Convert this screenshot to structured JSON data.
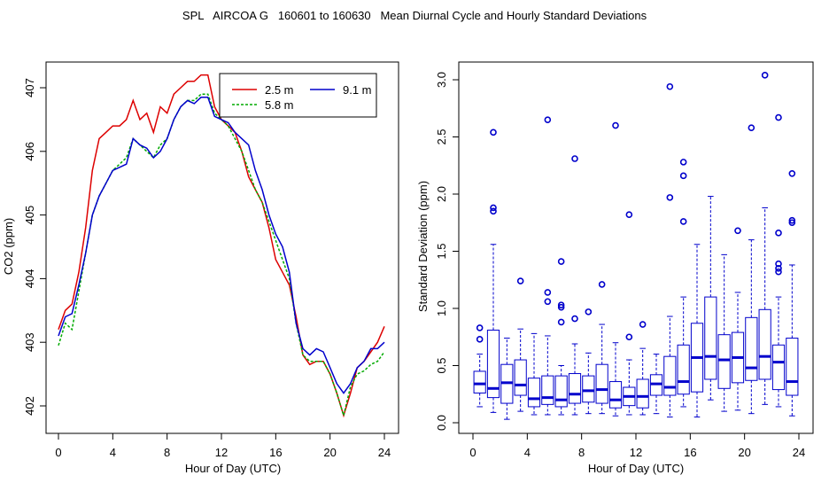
{
  "title": "SPL   AIRCOA G   160601 to 160630   Mean Diurnal Cycle and Hourly Standard Deviations",
  "chart_data": [
    {
      "type": "line",
      "xlabel": "Hour of Day (UTC)",
      "ylabel": "CO2 (ppm)",
      "xlim": [
        0,
        24
      ],
      "ylim": [
        401.6,
        407.3
      ],
      "xticks": [
        "0",
        "4",
        "8",
        "12",
        "16",
        "20",
        "24"
      ],
      "yticks": [
        "402",
        "403",
        "404",
        "405",
        "406",
        "407"
      ],
      "legend_position": "top-right",
      "series": [
        {
          "name": "2.5 m",
          "color": "#dd0000",
          "x": [
            0,
            0.5,
            1,
            1.5,
            2,
            2.5,
            3,
            3.5,
            4,
            4.5,
            5,
            5.5,
            6,
            6.5,
            7,
            7.5,
            8,
            8.5,
            9,
            9.5,
            10,
            10.5,
            11,
            11.5,
            12,
            12.5,
            13,
            13.5,
            14,
            14.5,
            15,
            15.5,
            16,
            16.5,
            17,
            17.5,
            18,
            18.5,
            19,
            19.5,
            20,
            20.5,
            21,
            21.5,
            22,
            22.5,
            23,
            23.5,
            24
          ],
          "y": [
            403.2,
            403.5,
            403.6,
            404.1,
            404.8,
            405.7,
            406.2,
            406.3,
            406.4,
            406.4,
            406.5,
            406.8,
            406.5,
            406.6,
            406.3,
            406.7,
            406.6,
            406.9,
            407.0,
            407.1,
            407.1,
            407.2,
            407.2,
            406.7,
            406.5,
            406.4,
            406.3,
            406.0,
            405.6,
            405.4,
            405.2,
            404.8,
            404.3,
            404.1,
            403.9,
            403.4,
            402.8,
            402.65,
            402.7,
            402.7,
            402.5,
            402.2,
            401.85,
            402.2,
            402.6,
            402.7,
            402.85,
            403.0,
            403.25
          ]
        },
        {
          "name": "5.8 m",
          "color": "#00aa00",
          "x": [
            0,
            0.5,
            1,
            1.5,
            2,
            2.5,
            3,
            3.5,
            4,
            4.5,
            5,
            5.5,
            6,
            6.5,
            7,
            7.5,
            8,
            8.5,
            9,
            9.5,
            10,
            10.5,
            11,
            11.5,
            12,
            12.5,
            13,
            13.5,
            14,
            14.5,
            15,
            15.5,
            16,
            16.5,
            17,
            17.5,
            18,
            18.5,
            19,
            19.5,
            20,
            20.5,
            21,
            21.5,
            22,
            22.5,
            23,
            23.5,
            24
          ],
          "y": [
            402.95,
            403.3,
            403.2,
            403.8,
            404.4,
            405.0,
            405.3,
            405.5,
            405.7,
            405.8,
            405.9,
            406.2,
            406.1,
            406.0,
            405.9,
            406.1,
            406.2,
            406.5,
            406.7,
            406.8,
            406.8,
            406.9,
            406.9,
            406.6,
            406.5,
            406.4,
            406.2,
            406.0,
            405.7,
            405.4,
            405.2,
            404.9,
            404.6,
            404.3,
            404.0,
            403.3,
            402.8,
            402.7,
            402.7,
            402.7,
            402.5,
            402.2,
            401.85,
            402.3,
            402.5,
            402.55,
            402.65,
            402.7,
            402.85
          ]
        },
        {
          "name": "9.1 m",
          "color": "#0000cc",
          "x": [
            0,
            0.5,
            1,
            1.5,
            2,
            2.5,
            3,
            3.5,
            4,
            4.5,
            5,
            5.5,
            6,
            6.5,
            7,
            7.5,
            8,
            8.5,
            9,
            9.5,
            10,
            10.5,
            11,
            11.5,
            12,
            12.5,
            13,
            13.5,
            14,
            14.5,
            15,
            15.5,
            16,
            16.5,
            17,
            17.5,
            18,
            18.5,
            19,
            19.5,
            20,
            20.5,
            21,
            21.5,
            22,
            22.5,
            23,
            23.5,
            24
          ],
          "y": [
            403.1,
            403.4,
            403.45,
            403.9,
            404.4,
            405.0,
            405.3,
            405.5,
            405.7,
            405.75,
            405.8,
            406.2,
            406.1,
            406.05,
            405.9,
            406.0,
            406.2,
            406.5,
            406.7,
            406.8,
            406.75,
            406.85,
            406.85,
            406.55,
            406.5,
            406.45,
            406.3,
            406.2,
            406.1,
            405.7,
            405.4,
            405.0,
            404.7,
            404.5,
            404.1,
            403.3,
            402.9,
            402.8,
            402.9,
            402.85,
            402.6,
            402.35,
            402.2,
            402.35,
            402.6,
            402.7,
            402.9,
            402.9,
            403.0
          ]
        }
      ]
    },
    {
      "type": "box",
      "xlabel": "Hour of Day (UTC)",
      "ylabel": "Standard Deviation (ppm)",
      "xlim": [
        0,
        24
      ],
      "ylim": [
        0,
        3.0
      ],
      "xticks": [
        "0",
        "4",
        "8",
        "12",
        "16",
        "20",
        "24"
      ],
      "yticks": [
        "0.0",
        "0.5",
        "1.0",
        "1.5",
        "2.0",
        "2.5",
        "3.0"
      ],
      "color": "#0000cc",
      "boxes": [
        {
          "hour": 0.5,
          "whisker_low": 0.14,
          "q1": 0.26,
          "median": 0.34,
          "q3": 0.45,
          "whisker_high": 0.6,
          "outliers": [
            0.73,
            0.83
          ]
        },
        {
          "hour": 1.5,
          "whisker_low": 0.09,
          "q1": 0.22,
          "median": 0.3,
          "q3": 0.81,
          "whisker_high": 1.56,
          "outliers": [
            1.85,
            1.88,
            2.54
          ]
        },
        {
          "hour": 2.5,
          "whisker_low": 0.03,
          "q1": 0.17,
          "median": 0.35,
          "q3": 0.51,
          "whisker_high": 0.74,
          "outliers": []
        },
        {
          "hour": 3.5,
          "whisker_low": 0.1,
          "q1": 0.24,
          "median": 0.33,
          "q3": 0.55,
          "whisker_high": 0.82,
          "outliers": [
            1.24
          ]
        },
        {
          "hour": 4.5,
          "whisker_low": 0.07,
          "q1": 0.14,
          "median": 0.21,
          "q3": 0.39,
          "whisker_high": 0.78,
          "outliers": []
        },
        {
          "hour": 5.5,
          "whisker_low": 0.07,
          "q1": 0.16,
          "median": 0.22,
          "q3": 0.41,
          "whisker_high": 0.76,
          "outliers": [
            1.06,
            1.14,
            2.65
          ]
        },
        {
          "hour": 6.5,
          "whisker_low": 0.07,
          "q1": 0.14,
          "median": 0.2,
          "q3": 0.41,
          "whisker_high": 0.5,
          "outliers": [
            0.88,
            1.01,
            1.03,
            1.41
          ]
        },
        {
          "hour": 7.5,
          "whisker_low": 0.07,
          "q1": 0.17,
          "median": 0.25,
          "q3": 0.43,
          "whisker_high": 0.69,
          "outliers": [
            0.91,
            2.31
          ]
        },
        {
          "hour": 8.5,
          "whisker_low": 0.08,
          "q1": 0.18,
          "median": 0.28,
          "q3": 0.41,
          "whisker_high": 0.61,
          "outliers": [
            0.97
          ]
        },
        {
          "hour": 9.5,
          "whisker_low": 0.08,
          "q1": 0.17,
          "median": 0.29,
          "q3": 0.51,
          "whisker_high": 0.86,
          "outliers": [
            1.21
          ]
        },
        {
          "hour": 10.5,
          "whisker_low": 0.06,
          "q1": 0.13,
          "median": 0.2,
          "q3": 0.36,
          "whisker_high": 0.7,
          "outliers": [
            2.6
          ]
        },
        {
          "hour": 11.5,
          "whisker_low": 0.07,
          "q1": 0.15,
          "median": 0.23,
          "q3": 0.31,
          "whisker_high": 0.55,
          "outliers": [
            0.75,
            1.82
          ]
        },
        {
          "hour": 12.5,
          "whisker_low": 0.07,
          "q1": 0.13,
          "median": 0.23,
          "q3": 0.38,
          "whisker_high": 0.65,
          "outliers": [
            0.86
          ]
        },
        {
          "hour": 13.5,
          "whisker_low": 0.08,
          "q1": 0.24,
          "median": 0.34,
          "q3": 0.42,
          "whisker_high": 0.6,
          "outliers": []
        },
        {
          "hour": 14.5,
          "whisker_low": 0.05,
          "q1": 0.24,
          "median": 0.31,
          "q3": 0.58,
          "whisker_high": 0.93,
          "outliers": [
            1.97,
            2.94
          ]
        },
        {
          "hour": 15.5,
          "whisker_low": 0.14,
          "q1": 0.25,
          "median": 0.36,
          "q3": 0.68,
          "whisker_high": 1.1,
          "outliers": [
            1.76,
            2.16,
            2.28
          ]
        },
        {
          "hour": 16.5,
          "whisker_low": 0.05,
          "q1": 0.27,
          "median": 0.57,
          "q3": 0.87,
          "whisker_high": 1.56,
          "outliers": []
        },
        {
          "hour": 17.5,
          "whisker_low": 0.2,
          "q1": 0.38,
          "median": 0.58,
          "q3": 1.1,
          "whisker_high": 1.98,
          "outliers": []
        },
        {
          "hour": 18.5,
          "whisker_low": 0.1,
          "q1": 0.3,
          "median": 0.55,
          "q3": 0.77,
          "whisker_high": 1.47,
          "outliers": []
        },
        {
          "hour": 19.5,
          "whisker_low": 0.11,
          "q1": 0.35,
          "median": 0.57,
          "q3": 0.79,
          "whisker_high": 1.14,
          "outliers": [
            1.68
          ]
        },
        {
          "hour": 20.5,
          "whisker_low": 0.08,
          "q1": 0.37,
          "median": 0.48,
          "q3": 0.92,
          "whisker_high": 1.6,
          "outliers": [
            2.58
          ]
        },
        {
          "hour": 21.5,
          "whisker_low": 0.16,
          "q1": 0.38,
          "median": 0.58,
          "q3": 0.99,
          "whisker_high": 1.88,
          "outliers": [
            3.04
          ]
        },
        {
          "hour": 22.5,
          "whisker_low": 0.14,
          "q1": 0.29,
          "median": 0.53,
          "q3": 0.68,
          "whisker_high": 1.1,
          "outliers": [
            1.32,
            1.35,
            1.39,
            1.66,
            2.67
          ]
        },
        {
          "hour": 23.5,
          "whisker_low": 0.06,
          "q1": 0.24,
          "median": 0.36,
          "q3": 0.74,
          "whisker_high": 1.38,
          "outliers": [
            1.75,
            1.77,
            2.18
          ]
        }
      ]
    }
  ]
}
